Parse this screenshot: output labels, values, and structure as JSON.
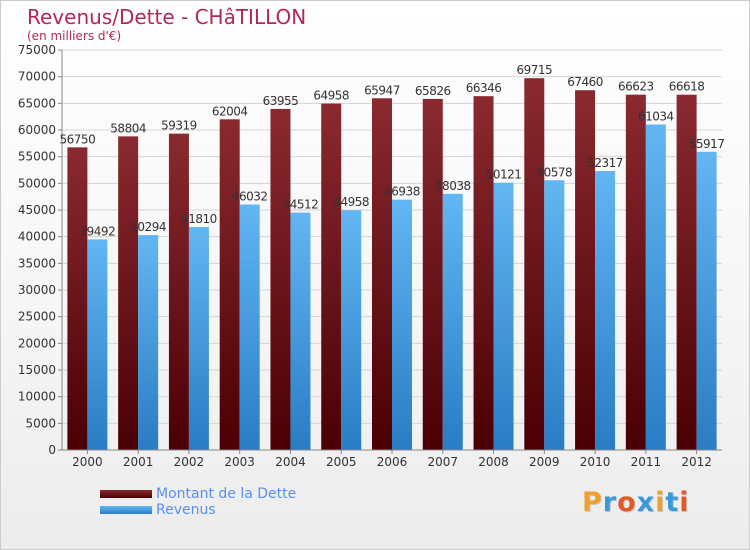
{
  "header": {
    "title": "Revenus/Dette - CHâTILLON",
    "subtitle": "(en milliers d'€)"
  },
  "colors": {
    "dette": "#7b2027",
    "dette_dark": "#500005",
    "revenus": "#5aaeee",
    "revenus_dark": "#2a7fc8",
    "text": "#333333",
    "title": "#b0285c",
    "legend_text": "#5b8ef0"
  },
  "legend": {
    "items": [
      {
        "label": "Montant de la Dette",
        "color": "#7b2027"
      },
      {
        "label": "Revenus",
        "color": "#5aaeee"
      }
    ]
  },
  "logo": {
    "text": "Proxiti",
    "letter_colors": [
      "#f0a030",
      "#3a9ad9",
      "#e05a2a",
      "#3a9ad9",
      "#f0a030",
      "#3a9ad9",
      "#e05a2a"
    ]
  },
  "chart_data": {
    "type": "bar",
    "categories": [
      "2000",
      "2001",
      "2002",
      "2003",
      "2004",
      "2005",
      "2006",
      "2007",
      "2008",
      "2009",
      "2010",
      "2011",
      "2012"
    ],
    "series": [
      {
        "name": "Montant de la Dette",
        "values": [
          56750,
          58804,
          59319,
          62004,
          63955,
          64958,
          65947,
          65826,
          66346,
          69715,
          67460,
          66623,
          66618
        ]
      },
      {
        "name": "Revenus",
        "values": [
          39492,
          40294,
          41810,
          46032,
          44512,
          44958,
          46938,
          48038,
          50121,
          50578,
          52317,
          61034,
          55917
        ]
      }
    ],
    "ylim": [
      0,
      75000
    ],
    "ytick_step": 5000,
    "grid": true,
    "legend_position": "bottom-left"
  }
}
